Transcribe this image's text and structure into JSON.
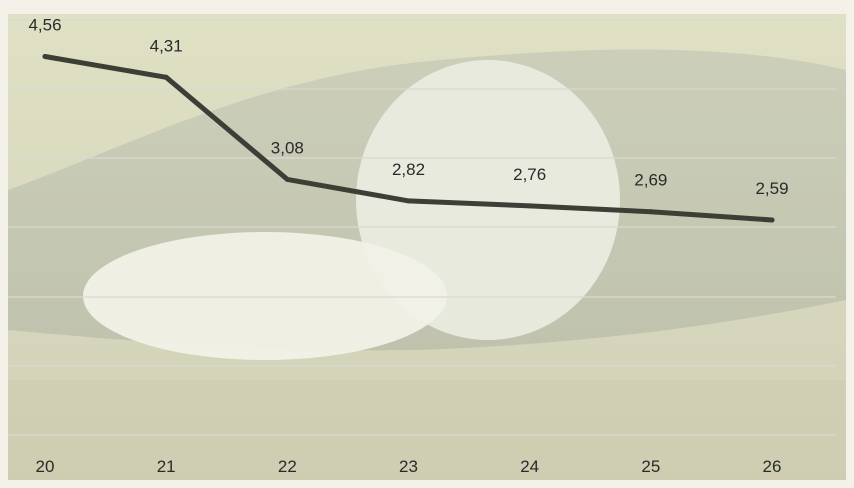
{
  "chart_data": {
    "type": "line",
    "title": "",
    "xlabel": "",
    "ylabel": "",
    "categories": [
      "20",
      "21",
      "22",
      "23",
      "24",
      "25",
      "26"
    ],
    "series": [
      {
        "values": [
          4.56,
          4.31,
          3.08,
          2.82,
          2.76,
          2.69,
          2.59
        ]
      }
    ],
    "data_labels": [
      "4,56",
      "4,31",
      "3,08",
      "2,82",
      "2,76",
      "2,69",
      "2,59"
    ],
    "ylim": [
      0,
      5
    ],
    "grid": true,
    "legend": "none",
    "background": "photo of zucchini on grass (faded)",
    "colors": {
      "line": "#3d3f36",
      "grid": "#d9d9cf",
      "text": "#2a2a2a"
    }
  }
}
